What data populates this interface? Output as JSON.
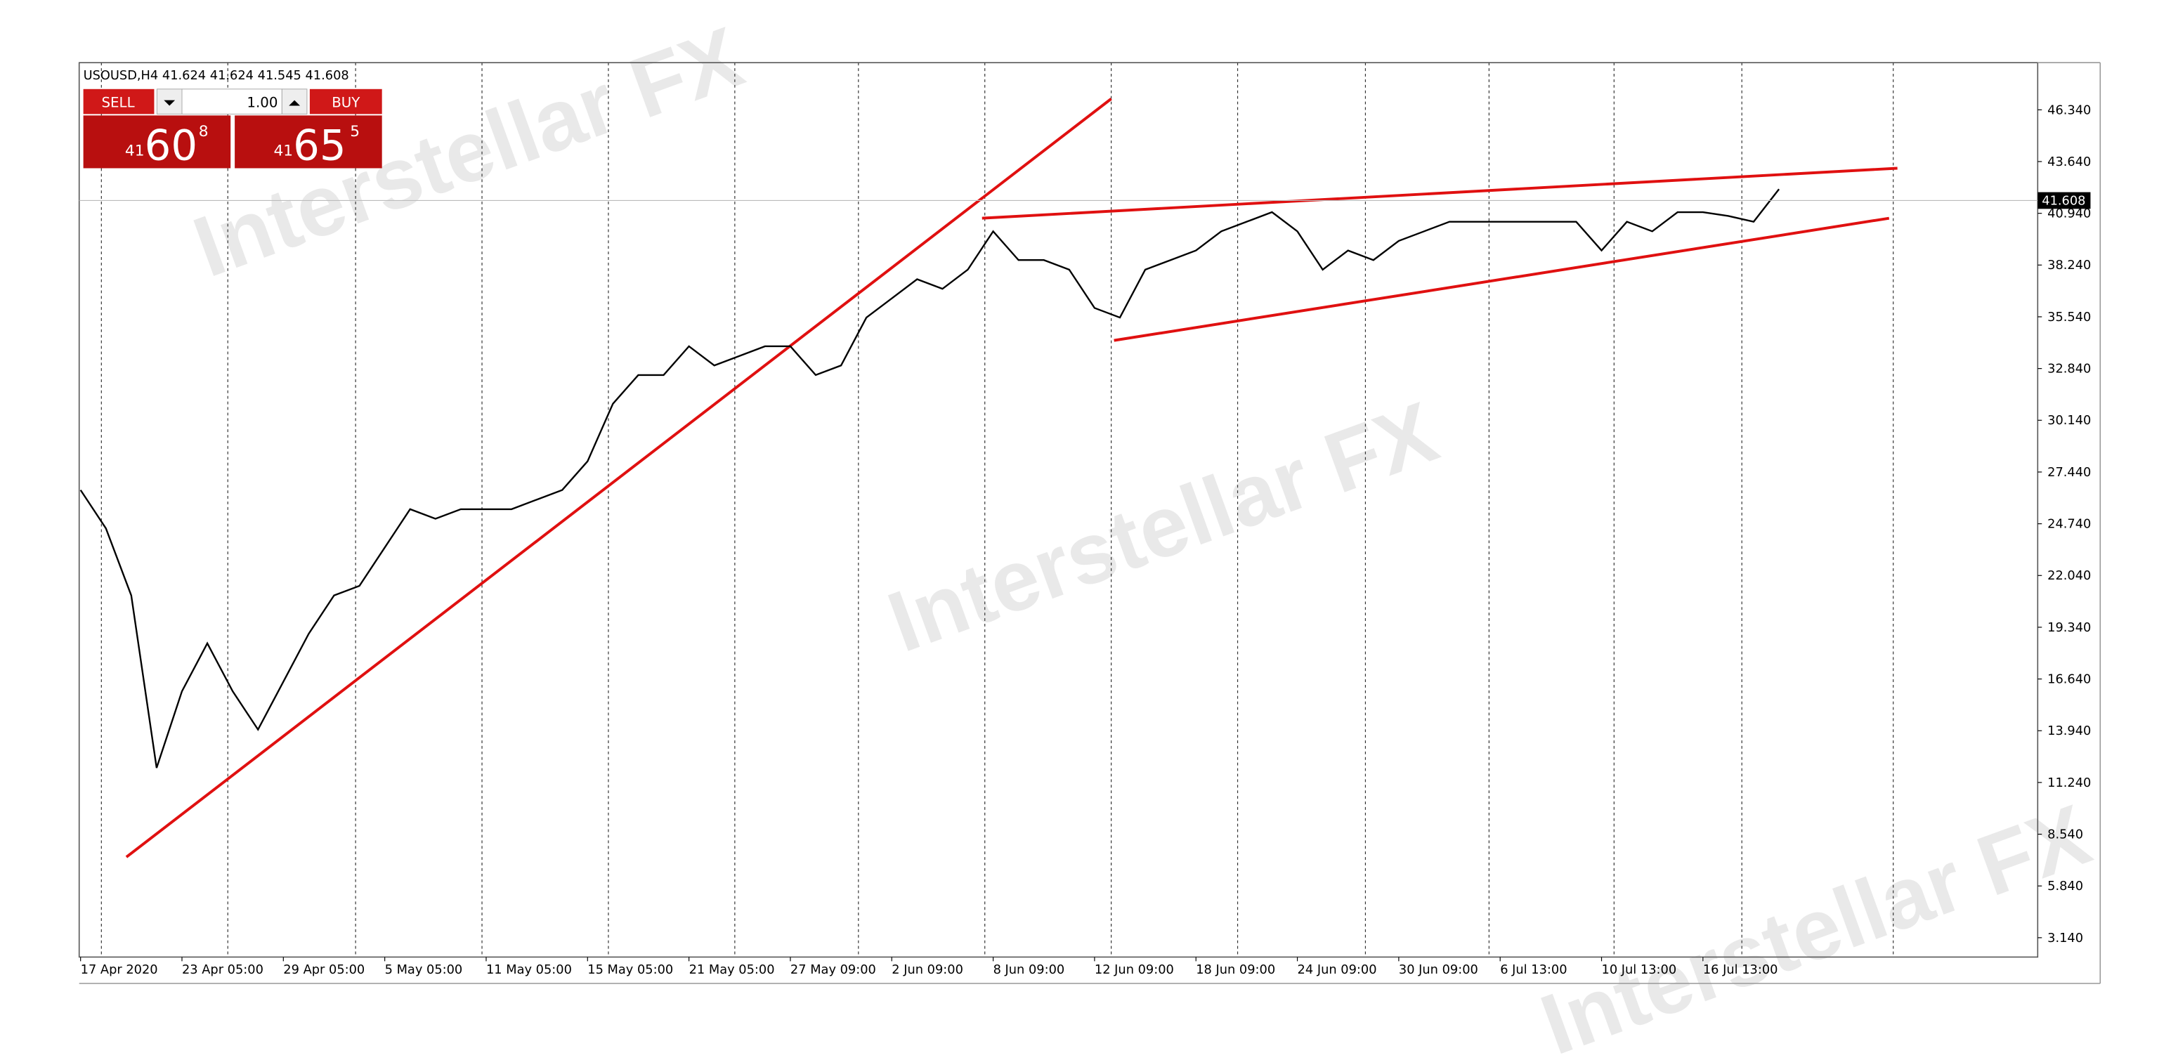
{
  "chart_data": {
    "type": "line",
    "title": "USOUSD,H4  41.624 41.624 41.545 41.608",
    "categories": [
      "17 Apr 2020",
      null,
      null,
      null,
      "23 Apr 05:00",
      null,
      null,
      null,
      "29 Apr 05:00",
      null,
      null,
      null,
      "5 May 05:00",
      null,
      null,
      null,
      "11 May 05:00",
      null,
      null,
      null,
      "15 May 05:00",
      null,
      null,
      null,
      "21 May 05:00",
      null,
      null,
      null,
      "27 May 09:00",
      null,
      null,
      null,
      "2 Jun 09:00",
      null,
      null,
      null,
      "8 Jun 09:00",
      null,
      null,
      null,
      "12 Jun 09:00",
      null,
      null,
      null,
      "18 Jun 09:00",
      null,
      null,
      null,
      "24 Jun 09:00",
      null,
      null,
      null,
      "30 Jun 09:00",
      null,
      null,
      null,
      "6 Jul 13:00",
      null,
      null,
      null,
      "10 Jul 13:00",
      null,
      null,
      null,
      "16 Jul 13:00",
      null,
      null,
      null
    ],
    "values": [
      26.5,
      24.5,
      21,
      12,
      16,
      18.5,
      16,
      14,
      16.5,
      19,
      21,
      21.5,
      23.5,
      25.5,
      25,
      25.5,
      25.5,
      25.5,
      26,
      26.5,
      28,
      31,
      32.5,
      32.5,
      34,
      33,
      33.5,
      34,
      34,
      32.5,
      33,
      35.5,
      36.5,
      37.5,
      37,
      38,
      40,
      38.5,
      38.5,
      38,
      36,
      35.5,
      38,
      38.5,
      39,
      40,
      40.5,
      41,
      40,
      38,
      39,
      38.5,
      39.5,
      40,
      40.5,
      40.5,
      40.5,
      40.5,
      40.5,
      40.5,
      39,
      40.5,
      40,
      41,
      41,
      40.8,
      40.5,
      42.2
    ],
    "color": "#000000",
    "last_price": 41.608,
    "ylim": [
      2.13,
      48.8
    ],
    "yticks": [
      {
        "value": 46.34,
        "label": "46.340"
      },
      {
        "value": 43.64,
        "label": "43.640"
      },
      {
        "value": 40.94,
        "label": "40.940"
      },
      {
        "value": 38.24,
        "label": "38.240"
      },
      {
        "value": 35.54,
        "label": "35.540"
      },
      {
        "value": 32.84,
        "label": "32.840"
      },
      {
        "value": 30.14,
        "label": "30.140"
      },
      {
        "value": 27.44,
        "label": "27.440"
      },
      {
        "value": 24.74,
        "label": "24.740"
      },
      {
        "value": 22.04,
        "label": "22.040"
      },
      {
        "value": 19.34,
        "label": "19.340"
      },
      {
        "value": 16.64,
        "label": "16.640"
      },
      {
        "value": 13.94,
        "label": "13.940"
      },
      {
        "value": 11.24,
        "label": "11.240"
      },
      {
        "value": 8.54,
        "label": "8.540"
      },
      {
        "value": 5.84,
        "label": "5.840"
      },
      {
        "value": 3.14,
        "label": "3.140"
      }
    ]
  },
  "trade_panel": {
    "sell": "SELL",
    "lot": "1.00",
    "buy": "BUY",
    "bid": {
      "big": "41",
      "main": "60",
      "small": "8"
    },
    "ask": {
      "big": "41",
      "main": "65",
      "small": "5"
    }
  },
  "watermark": "Interstellar FX"
}
